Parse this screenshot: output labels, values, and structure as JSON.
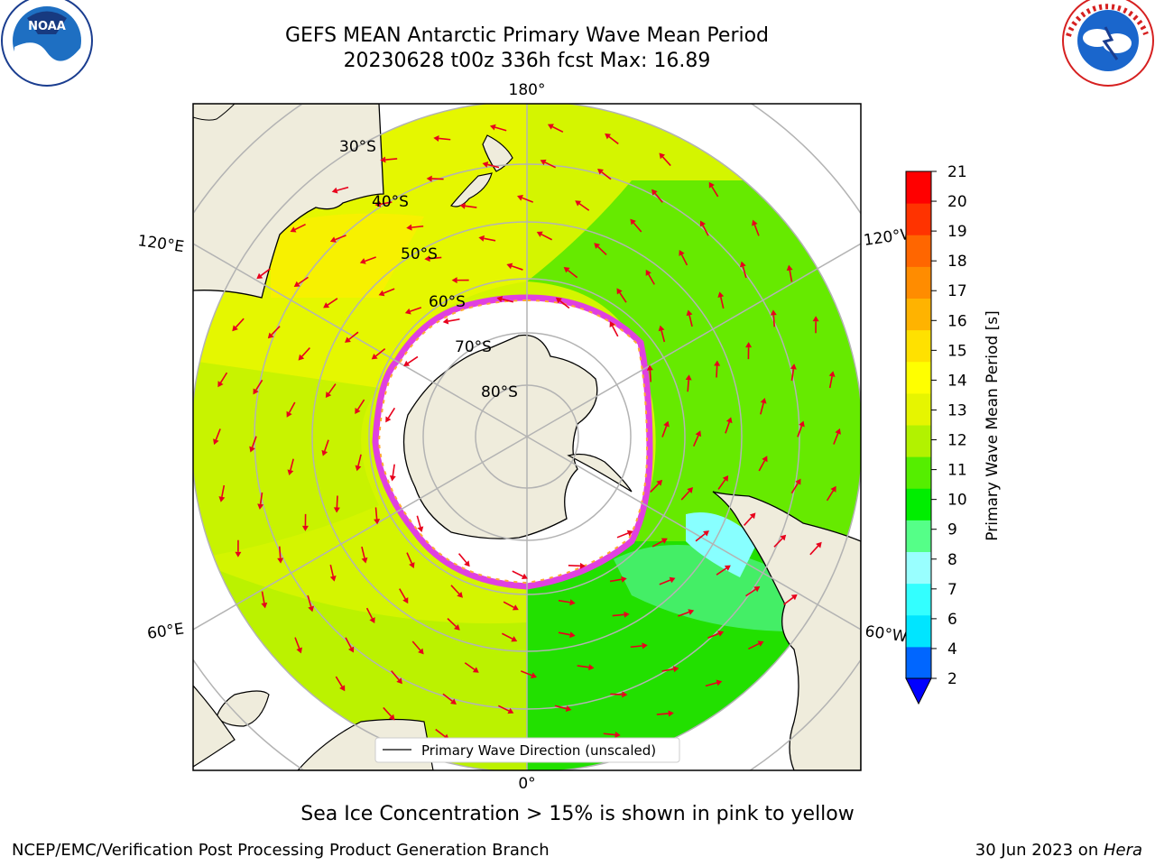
{
  "title_line1": "GEFS MEAN Antarctic Primary Wave Mean Period",
  "title_line2": "20230628 t00z 336h fcst   Max: 16.89",
  "caption": "Sea Ice Concentration > 15% is shown in pink to yellow",
  "footer_left": "NCEP/EMC/Verification Post Processing Product Generation Branch",
  "footer_right_date": "30 Jun 2023 on ",
  "footer_right_host": "Hera",
  "logos": {
    "left": "noora-logo",
    "right": "national-weather-service-logo",
    "left_text": "NOAA",
    "right_text": "NATIONAL WEATHER SERVICE"
  },
  "map": {
    "projection": "south-polar-stereographic",
    "lon_labels": {
      "top": "180°",
      "bottom": "0°",
      "upper_left": "120°E",
      "lower_left": "60°E",
      "upper_right": "120°W",
      "lower_right": "60°W"
    },
    "lat_labels": [
      "30°S",
      "40°S",
      "50°S",
      "60°S",
      "70°S",
      "80°S"
    ],
    "legend_label": "Primary Wave Direction (unscaled)",
    "colors": {
      "land": "#efecdc",
      "ice": "#ffffff",
      "ice_edge": "#e040e0",
      "arrow": "#ff0000",
      "grid": "#b3b3b3"
    }
  },
  "colorbar": {
    "label": "Primary Wave Mean Period [s]",
    "ticks": [
      "2",
      "4",
      "6",
      "7",
      "8",
      "9",
      "10",
      "11",
      "12",
      "13",
      "14",
      "15",
      "16",
      "17",
      "18",
      "19",
      "20",
      "21"
    ],
    "colors": [
      "#0066ff",
      "#00e5ff",
      "#33ffff",
      "#99ffff",
      "#55ff88",
      "#00ee00",
      "#55ee00",
      "#b2f200",
      "#e6f500",
      "#ffff00",
      "#ffe100",
      "#ffb300",
      "#ff8c00",
      "#ff6600",
      "#ff3300",
      "#ff0000"
    ],
    "extend_color": "#0000ff"
  }
}
